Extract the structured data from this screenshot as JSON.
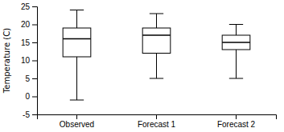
{
  "chart_data": {
    "type": "box",
    "categories": [
      "Observed",
      "Forecast 1",
      "Forecast 2"
    ],
    "boxes": [
      {
        "whisker_low": -1,
        "q1": 11,
        "median": 16,
        "q3": 19,
        "whisker_high": 24
      },
      {
        "whisker_low": 5,
        "q1": 12,
        "median": 17,
        "q3": 19,
        "whisker_high": 23
      },
      {
        "whisker_low": 5,
        "q1": 13,
        "median": 15,
        "q3": 17,
        "whisker_high": 20
      }
    ],
    "ylabel": "Temperature (C)",
    "ylim": [
      -5,
      25
    ],
    "yticks": [
      -5,
      0,
      5,
      10,
      15,
      20,
      25
    ],
    "color": "black",
    "grid": false
  }
}
